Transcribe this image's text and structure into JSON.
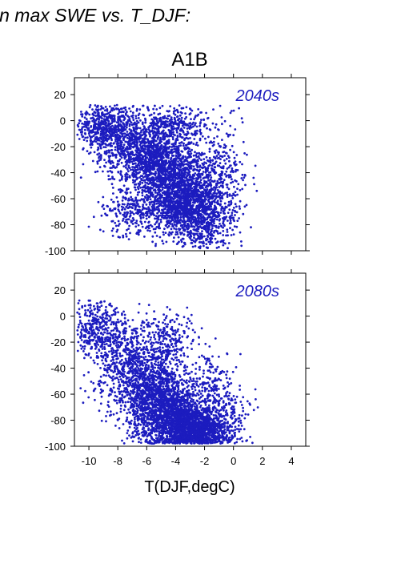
{
  "header": {
    "title": "in max SWE vs. T_DJF:"
  },
  "chart_data": {
    "type": "scatter",
    "title": "A1B",
    "xlabel": "T(DJF,degC)",
    "xlim": [
      -11,
      5
    ],
    "ylim": [
      -100,
      33
    ],
    "xticks": [
      -10,
      -8,
      -6,
      -4,
      -2,
      0,
      2,
      4
    ],
    "yticks": [
      20,
      0,
      -20,
      -40,
      -60,
      -80,
      -100
    ],
    "marker_color": "#1c1cbf",
    "panels": [
      {
        "name": "2040s",
        "clusters": [
          {
            "cx": -9.0,
            "cy": -5,
            "sx": 1.0,
            "sy": 9,
            "n": 500
          },
          {
            "cx": -7.0,
            "cy": -22,
            "sx": 1.2,
            "sy": 14,
            "n": 700
          },
          {
            "cx": -5.0,
            "cy": -35,
            "sx": 1.1,
            "sy": 18,
            "n": 1100
          },
          {
            "cx": -3.5,
            "cy": -55,
            "sx": 1.1,
            "sy": 16,
            "n": 1100
          },
          {
            "cx": -2.3,
            "cy": -72,
            "sx": 1.2,
            "sy": 12,
            "n": 700
          },
          {
            "cx": -7.0,
            "cy": -70,
            "sx": 1.0,
            "sy": 10,
            "n": 250
          },
          {
            "cx": -1.0,
            "cy": -40,
            "sx": 1.0,
            "sy": 20,
            "n": 300
          },
          {
            "cx": -4.0,
            "cy": -3,
            "sx": 1.3,
            "sy": 5,
            "n": 200
          }
        ]
      },
      {
        "name": "2080s",
        "clusters": [
          {
            "cx": -9.5,
            "cy": -10,
            "sx": 0.9,
            "sy": 10,
            "n": 350
          },
          {
            "cx": -7.5,
            "cy": -35,
            "sx": 1.2,
            "sy": 16,
            "n": 600
          },
          {
            "cx": -5.5,
            "cy": -62,
            "sx": 1.2,
            "sy": 16,
            "n": 1100
          },
          {
            "cx": -4.0,
            "cy": -78,
            "sx": 1.2,
            "sy": 12,
            "n": 1200
          },
          {
            "cx": -2.5,
            "cy": -88,
            "sx": 1.0,
            "sy": 8,
            "n": 900
          },
          {
            "cx": -1.0,
            "cy": -80,
            "sx": 1.0,
            "sy": 12,
            "n": 300
          },
          {
            "cx": -4.5,
            "cy": -20,
            "sx": 1.0,
            "sy": 12,
            "n": 250
          },
          {
            "cx": -1.5,
            "cy": -50,
            "sx": 0.8,
            "sy": 12,
            "n": 150
          }
        ]
      }
    ]
  }
}
